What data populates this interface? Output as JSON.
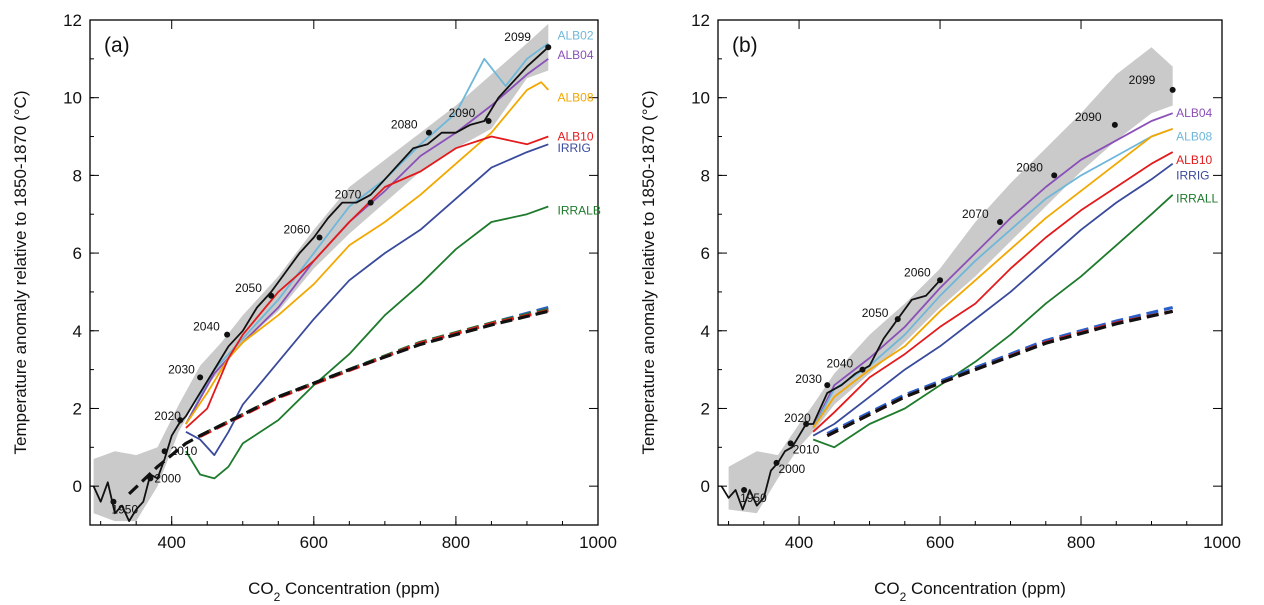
{
  "chart_data": [
    {
      "type": "line",
      "panel_label": "(a)",
      "xlabel_main": "CO",
      "xlabel_sub": "2",
      "xlabel_rest": " Concentration (ppm)",
      "ylabel": "Temperature anomaly relative to 1850-1870 (°C)",
      "xlim": [
        285,
        1000
      ],
      "ylim": [
        -1,
        12
      ],
      "xticks": [
        "400",
        "600",
        "800",
        "1000"
      ],
      "yticks": [
        "0",
        "2",
        "4",
        "6",
        "8",
        "10",
        "12"
      ],
      "shade": {
        "x": [
          290,
          320,
          350,
          380,
          410,
          440,
          470,
          500,
          550,
          600,
          650,
          700,
          750,
          800,
          850,
          900,
          930,
          930,
          900,
          850,
          800,
          750,
          700,
          650,
          600,
          550,
          500,
          470,
          440,
          410,
          380,
          350,
          320,
          290
        ],
        "y": [
          0.7,
          0.9,
          0.8,
          1.0,
          2.1,
          3.1,
          3.7,
          4.4,
          5.4,
          6.6,
          7.7,
          8.4,
          9.1,
          9.8,
          10.6,
          11.4,
          11.9,
          10.7,
          10.5,
          9.2,
          8.7,
          8.1,
          7.3,
          6.5,
          5.6,
          4.5,
          3.7,
          3.0,
          2.4,
          1.4,
          0.0,
          -0.9,
          -0.9,
          -0.7
        ]
      },
      "series": [
        {
          "name": "ALB02",
          "color": "#6fb7d9",
          "dashed": false,
          "x": [
            420,
            460,
            500,
            550,
            600,
            650,
            700,
            750,
            800,
            840,
            870,
            900,
            930
          ],
          "y": [
            1.6,
            3.0,
            3.8,
            4.8,
            6.0,
            7.2,
            7.9,
            8.8,
            9.6,
            11.0,
            10.3,
            11.0,
            11.4
          ]
        },
        {
          "name": "ALB04",
          "color": "#8a4fb8",
          "dashed": false,
          "x": [
            420,
            460,
            500,
            550,
            600,
            650,
            700,
            750,
            800,
            850,
            900,
            930
          ],
          "y": [
            1.6,
            2.9,
            3.7,
            4.6,
            5.8,
            6.8,
            7.6,
            8.5,
            9.1,
            9.8,
            10.6,
            11.0
          ]
        },
        {
          "name": "ALB08",
          "color": "#f2a800",
          "dashed": false,
          "x": [
            420,
            450,
            480,
            500,
            550,
            600,
            650,
            700,
            750,
            800,
            850,
            900,
            920,
            930
          ],
          "y": [
            1.6,
            2.4,
            3.3,
            3.7,
            4.4,
            5.2,
            6.2,
            6.8,
            7.5,
            8.3,
            9.1,
            10.2,
            10.4,
            10.2
          ]
        },
        {
          "name": "ALB10",
          "color": "#e31a1c",
          "dashed": false,
          "x": [
            420,
            450,
            480,
            500,
            550,
            600,
            650,
            700,
            750,
            800,
            850,
            900,
            930
          ],
          "y": [
            1.5,
            2.0,
            3.3,
            3.9,
            5.0,
            5.8,
            6.8,
            7.7,
            8.1,
            8.7,
            9.0,
            8.8,
            9.0
          ]
        },
        {
          "name": "IRRIG",
          "color": "#3a4a9c",
          "dashed": false,
          "x": [
            420,
            440,
            460,
            480,
            500,
            550,
            600,
            650,
            700,
            750,
            800,
            850,
            900,
            930
          ],
          "y": [
            1.4,
            1.2,
            0.8,
            1.4,
            2.1,
            3.2,
            4.3,
            5.3,
            6.0,
            6.6,
            7.4,
            8.2,
            8.6,
            8.8
          ]
        },
        {
          "name": "IRRALB",
          "color": "#1e7a2c",
          "dashed": false,
          "x": [
            420,
            440,
            460,
            480,
            500,
            550,
            600,
            650,
            700,
            750,
            800,
            850,
            900,
            930
          ],
          "y": [
            0.9,
            0.3,
            0.2,
            0.5,
            1.1,
            1.7,
            2.6,
            3.4,
            4.4,
            5.2,
            6.1,
            6.8,
            7.0,
            7.2
          ]
        },
        {
          "name": "",
          "color": "#2b60c9",
          "dashed": true,
          "x": [
            440,
            550,
            650,
            750,
            850,
            930
          ],
          "y": [
            1.3,
            2.3,
            3.0,
            3.7,
            4.2,
            4.6
          ]
        },
        {
          "name": "",
          "color": "#1e7a2c",
          "dashed": true,
          "x": [
            440,
            550,
            650,
            750,
            850,
            930
          ],
          "y": [
            1.3,
            2.3,
            3.0,
            3.7,
            4.2,
            4.55
          ]
        },
        {
          "name": "",
          "color": "#e31a1c",
          "dashed": true,
          "x": [
            440,
            550,
            650,
            750,
            850,
            930
          ],
          "y": [
            1.28,
            2.28,
            2.98,
            3.68,
            4.18,
            4.52
          ]
        },
        {
          "name": "",
          "color": "#111111",
          "dashed": true,
          "x": [
            340,
            380,
            420,
            440,
            550,
            650,
            750,
            850,
            930
          ],
          "y": [
            -0.2,
            0.5,
            1.1,
            1.3,
            2.3,
            3.0,
            3.65,
            4.15,
            4.5
          ]
        },
        {
          "name": "",
          "color": "#111111",
          "dashed": false,
          "x": [
            290,
            300,
            310,
            320,
            330,
            340,
            350,
            360,
            370,
            380,
            390,
            400,
            410,
            420,
            440,
            460,
            480,
            500,
            520,
            540,
            560,
            580,
            600,
            620,
            640,
            660,
            680,
            700,
            720,
            740,
            760,
            780,
            800,
            820,
            840,
            860,
            880,
            900,
            930
          ],
          "y": [
            0.0,
            -0.4,
            0.1,
            -0.7,
            -0.5,
            -0.9,
            -0.6,
            -0.4,
            0.3,
            0.2,
            0.7,
            1.3,
            1.6,
            1.8,
            2.4,
            3.0,
            3.6,
            4.0,
            4.6,
            5.0,
            5.5,
            6.0,
            6.4,
            6.9,
            7.3,
            7.3,
            7.5,
            7.9,
            8.3,
            8.7,
            8.8,
            9.1,
            9.1,
            9.3,
            9.4,
            10.0,
            10.4,
            10.8,
            11.3
          ]
        }
      ],
      "series_labels": [
        {
          "text": "ALB02",
          "color": "#6fb7d9",
          "x": 943,
          "y": 11.6
        },
        {
          "text": "ALB04",
          "color": "#8a4fb8",
          "x": 943,
          "y": 11.1
        },
        {
          "text": "ALB08",
          "color": "#f2a800",
          "x": 943,
          "y": 10.0
        },
        {
          "text": "ALB10",
          "color": "#e31a1c",
          "x": 943,
          "y": 9.0
        },
        {
          "text": "IRRIG",
          "color": "#3a4a9c",
          "x": 943,
          "y": 8.7
        },
        {
          "text": "IRRALB",
          "color": "#1e7a2c",
          "x": 943,
          "y": 7.1
        }
      ],
      "year_markers": [
        {
          "year": "1950",
          "x": 318,
          "y": -0.4,
          "dx": -2,
          "dy": 12
        },
        {
          "year": "2000",
          "x": 370,
          "y": 0.2,
          "dx": 4,
          "dy": 4
        },
        {
          "year": "2010",
          "x": 390,
          "y": 0.9,
          "dx": 6,
          "dy": 4
        },
        {
          "year": "2020",
          "x": 412,
          "y": 1.7,
          "dx": -26,
          "dy": 0
        },
        {
          "year": "2030",
          "x": 440,
          "y": 2.8,
          "dx": -32,
          "dy": -4
        },
        {
          "year": "2040",
          "x": 478,
          "y": 3.9,
          "dx": -34,
          "dy": -4
        },
        {
          "year": "2050",
          "x": 540,
          "y": 4.9,
          "dx": -36,
          "dy": -4
        },
        {
          "year": "2060",
          "x": 608,
          "y": 6.4,
          "dx": -36,
          "dy": -4
        },
        {
          "year": "2070",
          "x": 680,
          "y": 7.3,
          "dx": -36,
          "dy": -4
        },
        {
          "year": "2080",
          "x": 762,
          "y": 9.1,
          "dx": -38,
          "dy": -4
        },
        {
          "year": "2090",
          "x": 846,
          "y": 9.4,
          "dx": -40,
          "dy": -4
        },
        {
          "year": "2099",
          "x": 930,
          "y": 11.3,
          "dx": -44,
          "dy": -6
        }
      ]
    },
    {
      "type": "line",
      "panel_label": "(b)",
      "xlabel_main": "CO",
      "xlabel_sub": "2",
      "xlabel_rest": " Concentration (ppm)",
      "ylabel": "Temperature anomaly relative to 1850-1870 (°C)",
      "xlim": [
        285,
        1000
      ],
      "ylim": [
        -1,
        12
      ],
      "xticks": [
        "400",
        "600",
        "800",
        "1000"
      ],
      "yticks": [
        "0",
        "2",
        "4",
        "6",
        "8",
        "10",
        "12"
      ],
      "shade": {
        "x": [
          300,
          340,
          370,
          400,
          420,
          450,
          500,
          550,
          600,
          650,
          700,
          750,
          800,
          850,
          900,
          930,
          930,
          900,
          850,
          800,
          750,
          700,
          650,
          600,
          550,
          500,
          450,
          420,
          400,
          370,
          340,
          300
        ],
        "y": [
          0.5,
          0.9,
          0.8,
          1.6,
          2.1,
          2.9,
          3.9,
          4.7,
          5.6,
          6.8,
          7.8,
          8.7,
          9.6,
          10.6,
          11.3,
          10.8,
          9.8,
          9.6,
          8.9,
          8.1,
          7.2,
          6.3,
          5.4,
          4.6,
          3.7,
          2.9,
          2.1,
          1.4,
          1.0,
          0.2,
          -0.7,
          -0.6
        ]
      },
      "series": [
        {
          "name": "ALB04",
          "color": "#8a4fb8",
          "dashed": false,
          "x": [
            420,
            450,
            500,
            550,
            600,
            650,
            700,
            750,
            800,
            850,
            900,
            930
          ],
          "y": [
            1.5,
            2.6,
            3.3,
            4.1,
            5.1,
            6.0,
            6.9,
            7.7,
            8.4,
            8.9,
            9.4,
            9.6
          ]
        },
        {
          "name": "ALB08",
          "color": "#6fb7d9",
          "dashed": false,
          "x": [
            420,
            450,
            500,
            550,
            600,
            650,
            700,
            750,
            800,
            850,
            900,
            930
          ],
          "y": [
            1.5,
            2.5,
            3.1,
            3.9,
            4.9,
            5.8,
            6.6,
            7.4,
            8.0,
            8.5,
            9.0,
            9.2
          ]
        },
        {
          "name": "",
          "color": "#f2a800",
          "dashed": false,
          "x": [
            420,
            450,
            500,
            550,
            600,
            650,
            700,
            750,
            800,
            850,
            900,
            930
          ],
          "y": [
            1.5,
            2.3,
            3.0,
            3.6,
            4.5,
            5.3,
            6.1,
            6.9,
            7.6,
            8.3,
            9.0,
            9.2
          ]
        },
        {
          "name": "ALB10",
          "color": "#e31a1c",
          "dashed": false,
          "x": [
            420,
            450,
            500,
            550,
            600,
            650,
            700,
            750,
            800,
            850,
            900,
            930
          ],
          "y": [
            1.4,
            1.9,
            2.8,
            3.4,
            4.1,
            4.7,
            5.6,
            6.4,
            7.1,
            7.7,
            8.3,
            8.6
          ]
        },
        {
          "name": "IRRIG",
          "color": "#3a4a9c",
          "dashed": false,
          "x": [
            420,
            450,
            500,
            550,
            600,
            650,
            700,
            750,
            800,
            850,
            900,
            930
          ],
          "y": [
            1.3,
            1.6,
            2.3,
            3.0,
            3.6,
            4.3,
            5.0,
            5.8,
            6.6,
            7.3,
            7.9,
            8.3
          ]
        },
        {
          "name": "IRRALL",
          "color": "#1e7a2c",
          "dashed": false,
          "x": [
            420,
            450,
            500,
            550,
            600,
            650,
            700,
            750,
            800,
            850,
            900,
            930
          ],
          "y": [
            1.2,
            1.0,
            1.6,
            2.0,
            2.6,
            3.2,
            3.9,
            4.7,
            5.4,
            6.2,
            7.0,
            7.5
          ]
        },
        {
          "name": "",
          "color": "#2b60c9",
          "dashed": true,
          "x": [
            440,
            550,
            650,
            750,
            850,
            930
          ],
          "y": [
            1.35,
            2.35,
            3.05,
            3.75,
            4.25,
            4.6
          ]
        },
        {
          "name": "",
          "color": "#e31a1c",
          "dashed": true,
          "x": [
            440,
            550,
            650,
            750,
            850,
            930
          ],
          "y": [
            1.3,
            2.3,
            3.0,
            3.7,
            4.2,
            4.5
          ]
        },
        {
          "name": "",
          "color": "#111111",
          "dashed": true,
          "x": [
            440,
            550,
            650,
            750,
            850,
            930
          ],
          "y": [
            1.3,
            2.3,
            3.0,
            3.68,
            4.18,
            4.5
          ]
        },
        {
          "name": "",
          "color": "#111111",
          "dashed": false,
          "x": [
            290,
            300,
            310,
            320,
            330,
            340,
            350,
            360,
            370,
            380,
            390,
            400,
            410,
            420,
            440,
            460,
            480,
            500,
            520,
            540,
            560,
            580,
            600
          ],
          "y": [
            0.0,
            -0.3,
            -0.1,
            -0.6,
            -0.1,
            -0.5,
            -0.3,
            0.4,
            0.6,
            0.9,
            1.0,
            1.3,
            1.6,
            1.6,
            2.4,
            2.6,
            2.9,
            3.1,
            3.8,
            4.3,
            4.8,
            4.9,
            5.3
          ]
        }
      ],
      "series_labels": [
        {
          "text": "ALB04",
          "color": "#8a4fb8",
          "x": 935,
          "y": 9.6
        },
        {
          "text": "ALB08",
          "color": "#6fb7d9",
          "x": 935,
          "y": 9.0
        },
        {
          "text": "ALB10",
          "color": "#e31a1c",
          "x": 935,
          "y": 8.4
        },
        {
          "text": "IRRIG",
          "color": "#3a4a9c",
          "x": 935,
          "y": 8.0
        },
        {
          "text": "IRRALL",
          "color": "#1e7a2c",
          "x": 935,
          "y": 7.4
        }
      ],
      "year_markers": [
        {
          "year": "1950",
          "x": 322,
          "y": -0.1,
          "dx": -4,
          "dy": 12
        },
        {
          "year": "2000",
          "x": 368,
          "y": 0.6,
          "dx": 2,
          "dy": 10
        },
        {
          "year": "2010",
          "x": 388,
          "y": 1.1,
          "dx": 2,
          "dy": 10
        },
        {
          "year": "2020",
          "x": 410,
          "y": 1.6,
          "dx": -22,
          "dy": -2
        },
        {
          "year": "2030",
          "x": 440,
          "y": 2.6,
          "dx": -32,
          "dy": -2
        },
        {
          "year": "2040",
          "x": 490,
          "y": 3.0,
          "dx": -36,
          "dy": -2
        },
        {
          "year": "2050",
          "x": 540,
          "y": 4.3,
          "dx": -36,
          "dy": -2
        },
        {
          "year": "2060",
          "x": 600,
          "y": 5.3,
          "dx": -36,
          "dy": -4
        },
        {
          "year": "2070",
          "x": 685,
          "y": 6.8,
          "dx": -38,
          "dy": -4
        },
        {
          "year": "2080",
          "x": 762,
          "y": 8.0,
          "dx": -38,
          "dy": -4
        },
        {
          "year": "2090",
          "x": 848,
          "y": 9.3,
          "dx": -40,
          "dy": -4
        },
        {
          "year": "2099",
          "x": 930,
          "y": 10.2,
          "dx": -44,
          "dy": -6
        }
      ]
    }
  ]
}
